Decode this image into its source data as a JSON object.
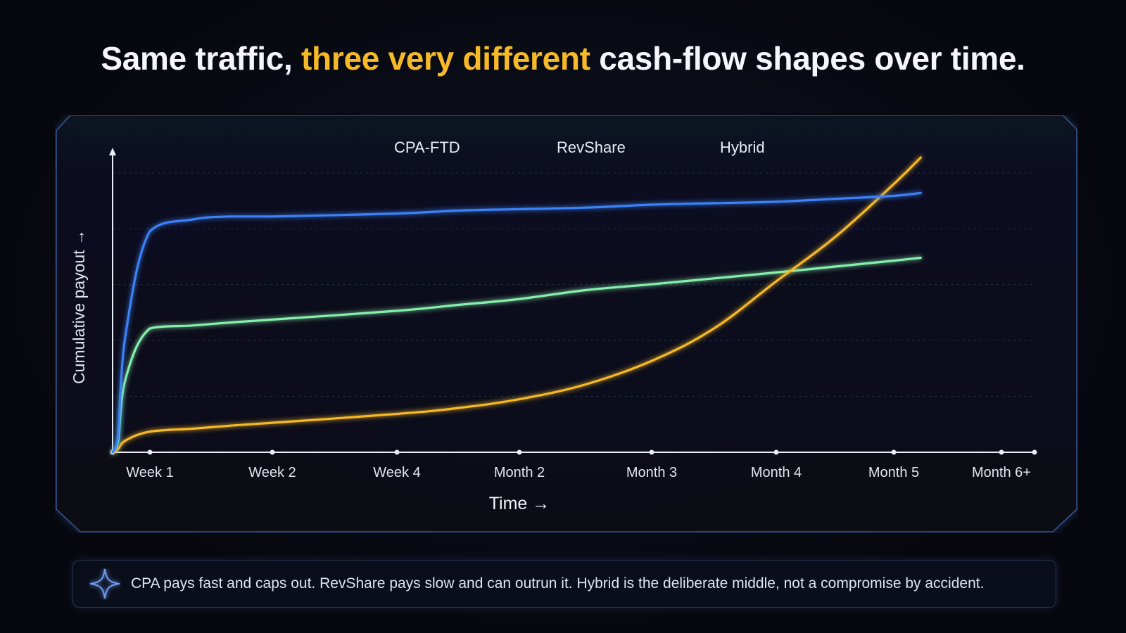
{
  "title": {
    "before": "Same traffic, ",
    "highlight": "three very different",
    "after": " cash-flow shapes over time."
  },
  "colors": {
    "background": "#07080f",
    "highlight": "#f6b928",
    "cpa": "#3b82f6",
    "revshare": "#f6b928",
    "hybrid": "#86efac",
    "panel_border": "#3a5a9a"
  },
  "chart_data": {
    "type": "line",
    "xlabel": "Time →",
    "ylabel": "Cumulative payout →",
    "categories": [
      "Week 1",
      "Week 2",
      "Week 4",
      "Month 2",
      "Month 3",
      "Month 4",
      "Month 5",
      "Month 6+"
    ],
    "x": [
      0,
      0.14,
      0.35,
      1.0,
      1.35,
      1.65,
      2.0,
      3.0,
      3.5,
      4.0,
      4.5,
      5.0,
      5.5,
      6.0,
      6.5,
      7.0,
      7.25
    ],
    "ylim": [
      0,
      100
    ],
    "y_tick_labels_shown": false,
    "grid": "horizontal dashed",
    "legend_position": "top-center",
    "series": [
      {
        "name": "CPA-FTD",
        "color": "#3b82f6",
        "values": [
          0,
          5,
          40,
          75,
          79,
          80,
          80,
          81,
          82,
          82.5,
          83,
          84,
          84.5,
          85,
          86,
          87,
          88
        ]
      },
      {
        "name": "RevShare",
        "color": "#f6b928",
        "values": [
          0,
          1,
          4,
          7,
          8,
          9,
          10,
          13,
          15,
          18,
          23,
          31,
          42,
          58,
          73,
          91,
          100
        ]
      },
      {
        "name": "Hybrid",
        "color": "#86efac",
        "values": [
          0,
          3,
          25,
          42,
          43,
          44,
          45,
          48,
          50,
          52,
          55,
          57,
          59,
          61,
          63,
          65,
          66
        ]
      }
    ]
  },
  "callout": {
    "icon": "sparkle-icon",
    "text": "CPA pays fast and caps out. RevShare pays slow and can outrun it. Hybrid is the deliberate middle, not a compromise by accident."
  }
}
